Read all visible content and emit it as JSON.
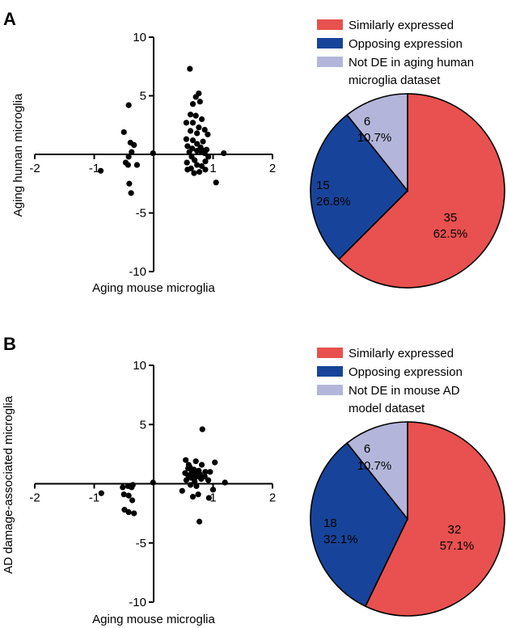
{
  "colors": {
    "similar": "#E8514F",
    "opposing": "#17449A",
    "not_de": "#B3B6DA",
    "axis": "#000000",
    "point": "#000000"
  },
  "panels": [
    {
      "letter": "A",
      "scatter": {
        "xlabel": "Aging mouse microglia",
        "ylabel": "Aging human microglia",
        "xlim": [
          -2,
          2
        ],
        "ylim": [
          -10,
          10
        ],
        "xticks": [
          {
            "v": -2,
            "label": "-2"
          },
          {
            "v": -1,
            "label": "-1"
          },
          {
            "v": 1,
            "label": "1"
          },
          {
            "v": 2,
            "label": "2"
          }
        ],
        "yticks": [
          {
            "v": 10,
            "label": "10"
          },
          {
            "v": 5,
            "label": "5"
          },
          {
            "v": -5,
            "label": "-5"
          },
          {
            "v": -10,
            "label": "-10"
          }
        ]
      },
      "pie": {
        "legend": [
          {
            "key": "similar",
            "label": "Similarly expressed"
          },
          {
            "key": "opposing",
            "label": "Opposing expression"
          },
          {
            "key": "not_de",
            "label": "Not DE in aging human",
            "label2": "microglia dataset"
          }
        ],
        "slice_labels": [
          {
            "key": "similar",
            "count": "35",
            "pct": "62.5%"
          },
          {
            "key": "opposing",
            "count": "15",
            "pct": "26.8%"
          },
          {
            "key": "not_de",
            "count": "6",
            "pct": "10.7%"
          }
        ]
      }
    },
    {
      "letter": "B",
      "scatter": {
        "xlabel": "Aging mouse microglia",
        "ylabel": "AD damage-associated microglia",
        "xlim": [
          -2,
          2
        ],
        "ylim": [
          -10,
          10
        ],
        "xticks": [
          {
            "v": -2,
            "label": "-2"
          },
          {
            "v": -1,
            "label": "-1"
          },
          {
            "v": 1,
            "label": "1"
          },
          {
            "v": 2,
            "label": "2"
          }
        ],
        "yticks": [
          {
            "v": 10,
            "label": "10"
          },
          {
            "v": 5,
            "label": "5"
          },
          {
            "v": -5,
            "label": "-5"
          },
          {
            "v": -10,
            "label": "-10"
          }
        ]
      },
      "pie": {
        "legend": [
          {
            "key": "similar",
            "label": "Similarly expressed"
          },
          {
            "key": "opposing",
            "label": "Opposing expression"
          },
          {
            "key": "not_de",
            "label": "Not DE in mouse AD",
            "label2": "model dataset"
          }
        ],
        "slice_labels": [
          {
            "key": "similar",
            "count": "32",
            "pct": "57.1%"
          },
          {
            "key": "opposing",
            "count": "18",
            "pct": "32.1%"
          },
          {
            "key": "not_de",
            "count": "6",
            "pct": "10.7%"
          }
        ]
      }
    }
  ],
  "chart_data": [
    {
      "type": "scatter",
      "panel": "A",
      "xlabel": "Aging mouse microglia",
      "ylabel": "Aging human microglia",
      "xlim": [
        -2,
        2
      ],
      "ylim": [
        -10,
        10
      ],
      "points": [
        [
          -0.42,
          4.2
        ],
        [
          -0.5,
          1.9
        ],
        [
          -0.39,
          1.0
        ],
        [
          -0.33,
          0.8
        ],
        [
          -0.37,
          0.2
        ],
        [
          -0.01,
          0.1
        ],
        [
          -0.42,
          -0.2
        ],
        [
          -0.47,
          -0.7
        ],
        [
          -0.28,
          -0.9
        ],
        [
          -0.43,
          -0.9
        ],
        [
          -0.38,
          -3.3
        ],
        [
          -0.89,
          -1.4
        ],
        [
          -0.41,
          -2.5
        ],
        [
          0.61,
          7.3
        ],
        [
          0.76,
          5.2
        ],
        [
          0.71,
          4.9
        ],
        [
          0.66,
          4.3
        ],
        [
          0.78,
          4.5
        ],
        [
          0.62,
          3.4
        ],
        [
          0.71,
          3.3
        ],
        [
          0.81,
          3.0
        ],
        [
          0.66,
          2.7
        ],
        [
          0.55,
          2.7
        ],
        [
          0.76,
          2.3
        ],
        [
          0.86,
          2.1
        ],
        [
          0.62,
          2.0
        ],
        [
          0.73,
          1.8
        ],
        [
          0.91,
          1.7
        ],
        [
          0.55,
          1.3
        ],
        [
          0.66,
          1.2
        ],
        [
          0.83,
          1.1
        ],
        [
          0.73,
          0.9
        ],
        [
          0.57,
          0.7
        ],
        [
          0.79,
          0.6
        ],
        [
          0.65,
          0.5
        ],
        [
          0.89,
          0.4
        ],
        [
          0.73,
          0.3
        ],
        [
          0.79,
          0.3
        ],
        [
          0.84,
          0.3
        ],
        [
          0.6,
          0.2
        ],
        [
          0.86,
          0.1
        ],
        [
          1.18,
          0.1
        ],
        [
          0.64,
          -0.2
        ],
        [
          0.92,
          -0.2
        ],
        [
          0.56,
          -0.7
        ],
        [
          0.73,
          -0.9
        ],
        [
          0.81,
          -1.0
        ],
        [
          0.63,
          -1.2
        ],
        [
          0.57,
          -1.3
        ],
        [
          0.87,
          -1.3
        ],
        [
          0.77,
          -1.5
        ],
        [
          0.68,
          -1.6
        ],
        [
          1.05,
          -2.4
        ],
        [
          0.87,
          -0.6
        ],
        [
          0.69,
          -0.5
        ]
      ]
    },
    {
      "type": "pie",
      "panel": "A",
      "categories": [
        "Similarly expressed",
        "Opposing expression",
        "Not DE in aging human microglia dataset"
      ],
      "values": [
        35,
        15,
        6
      ],
      "percents": [
        62.5,
        26.8,
        10.7
      ]
    },
    {
      "type": "scatter",
      "panel": "B",
      "xlabel": "Aging mouse microglia",
      "ylabel": "AD damage-associated microglia",
      "xlim": [
        -2,
        2
      ],
      "ylim": [
        -10,
        10
      ],
      "points": [
        [
          -0.88,
          -0.8
        ],
        [
          -0.35,
          -0.1
        ],
        [
          -0.01,
          0.1
        ],
        [
          -0.52,
          -0.3
        ],
        [
          -0.43,
          -0.2
        ],
        [
          -0.37,
          -0.3
        ],
        [
          -0.5,
          -0.9
        ],
        [
          -0.42,
          -1.0
        ],
        [
          -0.36,
          -1.4
        ],
        [
          -0.49,
          -2.2
        ],
        [
          -0.42,
          -2.4
        ],
        [
          -0.33,
          -2.5
        ],
        [
          0.82,
          4.6
        ],
        [
          0.54,
          2.0
        ],
        [
          0.71,
          1.9
        ],
        [
          0.59,
          1.6
        ],
        [
          0.81,
          1.6
        ],
        [
          1.03,
          1.8
        ],
        [
          0.58,
          1.3
        ],
        [
          0.68,
          1.2
        ],
        [
          0.76,
          1.1
        ],
        [
          0.64,
          1.0
        ],
        [
          0.87,
          1.0
        ],
        [
          0.53,
          0.9
        ],
        [
          0.67,
          0.8
        ],
        [
          0.78,
          0.8
        ],
        [
          0.58,
          0.7
        ],
        [
          0.72,
          0.6
        ],
        [
          0.86,
          0.6
        ],
        [
          0.63,
          0.5
        ],
        [
          0.8,
          0.4
        ],
        [
          0.55,
          0.3
        ],
        [
          0.92,
          0.3
        ],
        [
          0.69,
          0.2
        ],
        [
          1.2,
          0.1
        ],
        [
          0.62,
          -0.1
        ],
        [
          0.72,
          -0.2
        ],
        [
          0.48,
          -0.6
        ],
        [
          1.0,
          -0.5
        ],
        [
          0.75,
          -0.9
        ],
        [
          0.66,
          -1.1
        ],
        [
          0.93,
          -1.2
        ],
        [
          0.77,
          -3.2
        ],
        [
          0.74,
          0.9
        ],
        [
          0.95,
          1.0
        ],
        [
          0.61,
          1.4
        ]
      ]
    },
    {
      "type": "pie",
      "panel": "B",
      "categories": [
        "Similarly expressed",
        "Opposing expression",
        "Not DE in mouse AD model dataset"
      ],
      "values": [
        32,
        18,
        6
      ],
      "percents": [
        57.1,
        32.1,
        10.7
      ]
    }
  ]
}
